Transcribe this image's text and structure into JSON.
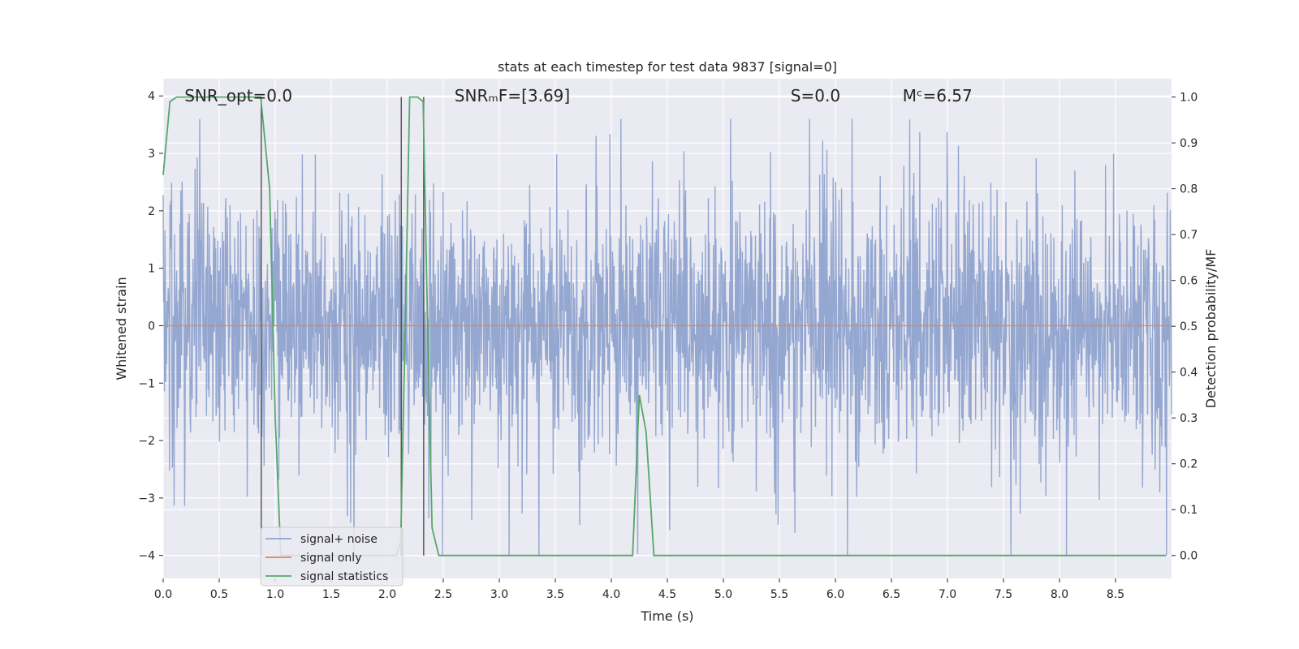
{
  "chart_data": {
    "type": "line",
    "title": "stats at each timestep for test data 9837 [signal=0]",
    "xlabel": "Time (s)",
    "ylabel": "Whitened strain",
    "y2label": "Detection probability/MF",
    "xlim": [
      0.0,
      9.0
    ],
    "ylim": [
      -4.4,
      4.3
    ],
    "y2lim": [
      -0.05,
      1.04
    ],
    "xticks": [
      0.0,
      0.5,
      1.0,
      1.5,
      2.0,
      2.5,
      3.0,
      3.5,
      4.0,
      4.5,
      5.0,
      5.5,
      6.0,
      6.5,
      7.0,
      7.5,
      8.0,
      8.5
    ],
    "xtick_labels": [
      "0.0",
      "0.5",
      "1.0",
      "1.5",
      "2.0",
      "2.5",
      "3.0",
      "3.5",
      "4.0",
      "4.5",
      "5.0",
      "5.5",
      "6.0",
      "6.5",
      "7.0",
      "7.5",
      "8.0",
      "8.5"
    ],
    "yticks": [
      -4,
      -3,
      -2,
      -1,
      0,
      1,
      2,
      3,
      4
    ],
    "ytick_labels": [
      "−4",
      "−3",
      "−2",
      "−1",
      "0",
      "1",
      "2",
      "3",
      "4"
    ],
    "y2ticks": [
      0.0,
      0.1,
      0.2,
      0.3,
      0.4,
      0.5,
      0.6,
      0.7,
      0.8,
      0.9,
      1.0
    ],
    "y2tick_labels": [
      "0.0",
      "0.1",
      "0.2",
      "0.3",
      "0.4",
      "0.5",
      "0.6",
      "0.7",
      "0.8",
      "0.9",
      "1.0"
    ],
    "annotations": [
      {
        "name": "snr-opt",
        "text": "SNR_opt=0.0",
        "x": 0.19,
        "y": 4.0
      },
      {
        "name": "snr-mf",
        "text": "SNRₘF=[3.69]",
        "x": 2.6,
        "y": 4.0
      },
      {
        "name": "s-value",
        "text": "S=0.0",
        "x": 5.6,
        "y": 4.0
      },
      {
        "name": "mc-value",
        "text": "Mᶜ=6.57",
        "x": 6.6,
        "y": 4.0
      }
    ],
    "vertical_lines": [
      0.875,
      2.125,
      2.325
    ],
    "series": [
      {
        "name": "signal+ noise",
        "color": "#8fa3cf",
        "axis": "left",
        "kind": "noise",
        "duration": 9.0,
        "typical_amplitude": 1.5,
        "peak_amplitude": 3.6
      },
      {
        "name": "signal only",
        "color": "#dd8452",
        "axis": "left",
        "kind": "flat",
        "x": [
          0.0,
          9.0
        ],
        "y": [
          0.0,
          0.0
        ]
      },
      {
        "name": "signal statistics",
        "color": "#55a868",
        "axis": "right",
        "kind": "line",
        "x": [
          0.0,
          0.06,
          0.12,
          0.2,
          0.5,
          0.8,
          0.87,
          0.95,
          1.0,
          1.05,
          1.1,
          1.5,
          2.0,
          2.08,
          2.12,
          2.16,
          2.2,
          2.27,
          2.32,
          2.36,
          2.4,
          2.46,
          3.0,
          3.5,
          4.0,
          4.19,
          4.25,
          4.31,
          4.38,
          4.5,
          5.0,
          6.0,
          7.0,
          8.0,
          8.95
        ],
        "y": [
          0.83,
          0.99,
          1.0,
          1.0,
          1.0,
          1.0,
          1.0,
          0.8,
          0.3,
          0.0,
          0.0,
          0.0,
          0.0,
          0.0,
          0.03,
          0.5,
          1.0,
          1.0,
          0.99,
          0.5,
          0.06,
          0.0,
          0.0,
          0.0,
          0.0,
          0.0,
          0.35,
          0.27,
          0.0,
          0.0,
          0.0,
          0.0,
          0.0,
          0.0,
          0.0
        ]
      }
    ],
    "legend": {
      "position": "lower-left",
      "entries": [
        "signal+ noise",
        "signal only",
        "signal statistics"
      ]
    },
    "grid": true
  }
}
